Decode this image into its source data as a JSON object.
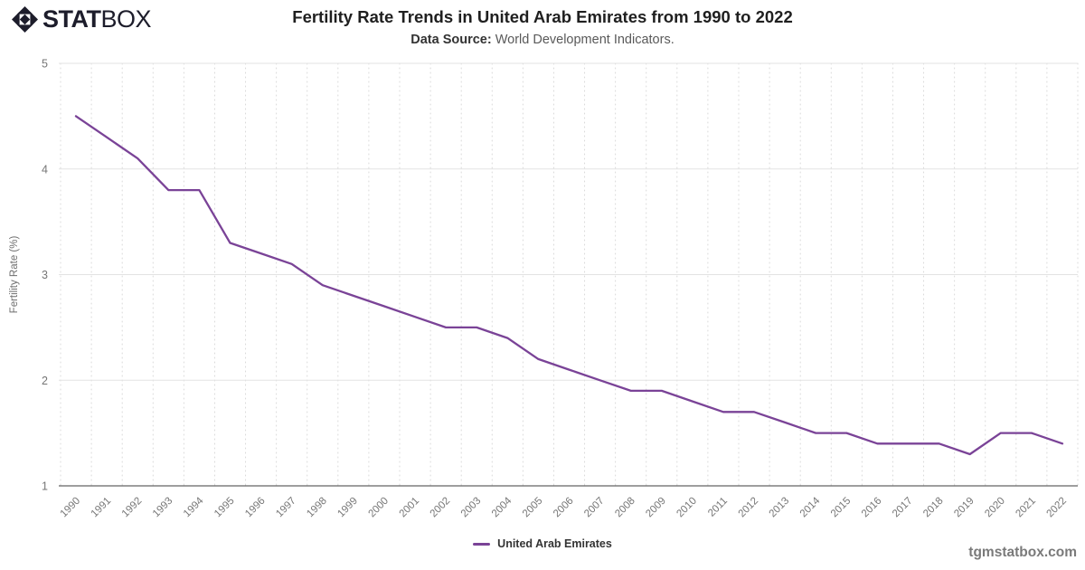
{
  "logo": {
    "stat": "STAT",
    "box": "BOX"
  },
  "header": {
    "subtitle_label": "Data Source:",
    "subtitle_rest": " World Development Indicators."
  },
  "chart_data": {
    "type": "line",
    "title": "Fertility Rate Trends in United Arab Emirates from 1990 to 2022",
    "subtitle": "Data Source: World Development Indicators.",
    "x": [
      "1990",
      "1991",
      "1992",
      "1993",
      "1994",
      "1995",
      "1996",
      "1997",
      "1998",
      "1999",
      "2000",
      "2001",
      "2002",
      "2003",
      "2004",
      "2005",
      "2006",
      "2007",
      "2008",
      "2009",
      "2010",
      "2011",
      "2012",
      "2013",
      "2014",
      "2015",
      "2016",
      "2017",
      "2018",
      "2019",
      "2020",
      "2021",
      "2022"
    ],
    "series": [
      {
        "name": "United Arab Emirates",
        "color": "#7a4397",
        "values": [
          4.5,
          4.3,
          4.1,
          3.8,
          3.8,
          3.3,
          3.2,
          3.1,
          2.9,
          2.8,
          2.7,
          2.6,
          2.5,
          2.5,
          2.4,
          2.2,
          2.1,
          2.0,
          1.9,
          1.9,
          1.8,
          1.7,
          1.7,
          1.6,
          1.5,
          1.5,
          1.4,
          1.4,
          1.4,
          1.3,
          1.5,
          1.5,
          1.4
        ]
      }
    ],
    "xlabel": "",
    "ylabel": "Fertility Rate (%)",
    "ylim": [
      1,
      5
    ],
    "yticks": [
      1,
      2,
      3,
      4,
      5
    ],
    "grid": true,
    "legend_position": "bottom"
  },
  "footer": {
    "watermark": "tgmstatbox.com"
  },
  "colors": {
    "accent": "#7a4397",
    "axis_line": "#3c3c3c",
    "grid_solid": "#e3e3e3",
    "grid_dotted": "#d9d9d9",
    "tick_text": "#757575",
    "axis_title_text": "#6e6e6e",
    "logo": "#1d1d2b"
  }
}
